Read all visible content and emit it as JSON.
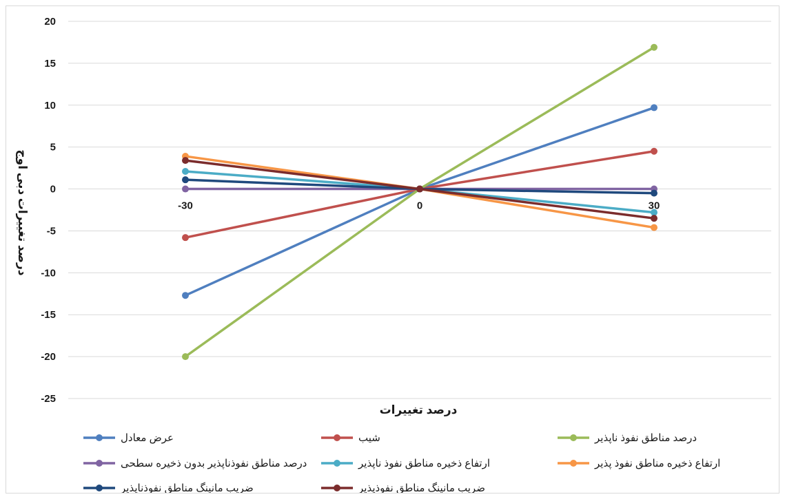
{
  "chart_data": {
    "type": "line",
    "title": "",
    "xlabel": "درصد تغییرات",
    "ylabel": "درصد تغییرات دبی اوج",
    "x": [
      -30,
      0,
      30
    ],
    "x_tick_labels": [
      "-30",
      "0",
      "30"
    ],
    "ylim": [
      -25,
      20
    ],
    "y_ticks": [
      20,
      15,
      10,
      5,
      0,
      -5,
      -10,
      -15,
      -20,
      -25
    ],
    "grid": true,
    "legend_position": "bottom",
    "series": [
      {
        "name": "عرض معادل",
        "color": "#4f7fbf",
        "values": [
          -12.7,
          0,
          9.7
        ]
      },
      {
        "name": "شیب",
        "color": "#c0504d",
        "values": [
          -5.8,
          0,
          4.5
        ]
      },
      {
        "name": "درصد مناطق نفوذ ناپذیر",
        "color": "#9bbb59",
        "values": [
          -20.0,
          0,
          16.9
        ]
      },
      {
        "name": "درصد مناطق نفوذناپذیر بدون ذخیره سطحی",
        "color": "#8064a2",
        "values": [
          0,
          0,
          0
        ]
      },
      {
        "name": "ارتفاع ذخیره مناطق نفوذ ناپذیر",
        "color": "#4bacc6",
        "values": [
          2.1,
          0,
          -2.8
        ]
      },
      {
        "name": "ارتفاع ذخیره مناطق نفوذ پذیر",
        "color": "#f79646",
        "values": [
          3.9,
          0,
          -4.6
        ]
      },
      {
        "name": "ضریب مانینگ  مناطق نفوذناپذیر",
        "color": "#1f497d",
        "values": [
          1.1,
          0,
          -0.5
        ]
      },
      {
        "name": "ضریب مانینگ مناطق نفوذپذیر",
        "color": "#7b2c2c",
        "values": [
          3.4,
          0,
          -3.5
        ]
      }
    ]
  }
}
